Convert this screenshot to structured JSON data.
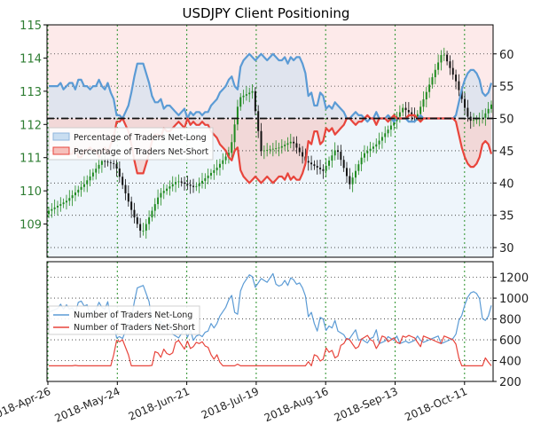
{
  "chart_data": [
    {
      "type": "line",
      "panel": "top",
      "title": "USDJPY Client Positioning",
      "left_axis": {
        "label": "",
        "range": [
          108.0,
          115.0
        ],
        "ticks": [
          109,
          110,
          111,
          112,
          113,
          114,
          115
        ],
        "color": "#2e7d32"
      },
      "right_axis": {
        "label": "",
        "range": [
          28.5,
          64.5
        ],
        "ticks": [
          30,
          35,
          40,
          45,
          50,
          55,
          60
        ]
      },
      "grid": true,
      "reference_line": {
        "axis": "right",
        "value": 50,
        "style": "dash-dot"
      },
      "legend_position": "center-left",
      "series": [
        {
          "name": "Percentage of Traders Net-Long",
          "color": "#5b9bd5",
          "axis": "right",
          "values": [
            55,
            55,
            55,
            55,
            55.5,
            54.5,
            55,
            55.5,
            55.5,
            54.5,
            56,
            56,
            55,
            55,
            54.5,
            55,
            55,
            56,
            55,
            54.5,
            55.5,
            54,
            53,
            50.5,
            50.5,
            50,
            51,
            52,
            54,
            56.5,
            58.5,
            58.5,
            58.5,
            57,
            55.5,
            53.5,
            52.5,
            52.5,
            53,
            51.5,
            52,
            52,
            51.5,
            51,
            50.5,
            51,
            51.5,
            50,
            51,
            50.5,
            51,
            51,
            50.5,
            51,
            51,
            52,
            52.5,
            53,
            54,
            54.5,
            55,
            56,
            56.5,
            55,
            54.5,
            58,
            59,
            59.5,
            60,
            59.5,
            59,
            59.5,
            60,
            59.5,
            59,
            59.5,
            60,
            59.5,
            59,
            59,
            59.5,
            58.5,
            59.5,
            59,
            59.5,
            59.5,
            58.5,
            57,
            53.5,
            54,
            52,
            52,
            54,
            53.5,
            51.5,
            52,
            51.5,
            52.5,
            52,
            51.5,
            51,
            50,
            50,
            50.5,
            51,
            50.5,
            50.5,
            50,
            49.5,
            50,
            50,
            51,
            50,
            50,
            50,
            50.5,
            50,
            49.5,
            50,
            50,
            50,
            50,
            49.5,
            49.5,
            49.5,
            50,
            50.5,
            50,
            50,
            50,
            50,
            50,
            50,
            50,
            50,
            50,
            50,
            50,
            50.5,
            52.5,
            54.5,
            56,
            57,
            57.5,
            57.5,
            57,
            56,
            54,
            53.5,
            54,
            55.5
          ]
        },
        {
          "name": "Percentage of Traders Net-Short",
          "color": "#e8453c",
          "axis": "right",
          "values": [
            45,
            45,
            45,
            45,
            44.5,
            45.5,
            45,
            44.5,
            44.5,
            45.5,
            44,
            44,
            45,
            45,
            45.5,
            45,
            45,
            44,
            45,
            45.5,
            44.5,
            46,
            47,
            49.5,
            49.5,
            50,
            49,
            48,
            46,
            43.5,
            41.5,
            41.5,
            41.5,
            43,
            44.5,
            46.5,
            47.5,
            47.5,
            47,
            48.5,
            48,
            48,
            48.5,
            49,
            49.5,
            49,
            48.5,
            50,
            49,
            49.5,
            49,
            49,
            49.5,
            49,
            49,
            48,
            47.5,
            47,
            46,
            45.5,
            45,
            44,
            43.5,
            45,
            45.5,
            42,
            41,
            40.5,
            40,
            40.5,
            41,
            40.5,
            40,
            40.5,
            41,
            40.5,
            40,
            40.5,
            41,
            41,
            40.5,
            41.5,
            40.5,
            41,
            40.5,
            40.5,
            41.5,
            43,
            46.5,
            46,
            48,
            48,
            46,
            46.5,
            48.5,
            48,
            48.5,
            47.5,
            48,
            48.5,
            49,
            50,
            50,
            49.5,
            49,
            49.5,
            49.5,
            50,
            50.5,
            50,
            50,
            49,
            50,
            50,
            50,
            49.5,
            50,
            50.5,
            50,
            50,
            50,
            50,
            50.5,
            50.5,
            50.5,
            50,
            49.5,
            50,
            50,
            50,
            50,
            50,
            50,
            50,
            50,
            50,
            50,
            50,
            49.5,
            47.5,
            45.5,
            44,
            43,
            42.5,
            42.5,
            43,
            44,
            46,
            46.5,
            46,
            44.5
          ]
        }
      ]
    },
    {
      "type": "line",
      "panel": "bottom",
      "x_tick_labels": [
        "2018-Apr-26",
        "2018-May-24",
        "2018-Jun-21",
        "2018-Jul-19",
        "2018-Aug-16",
        "2018-Sep-13",
        "2018-Oct-11"
      ],
      "y_axis": {
        "label": "",
        "range": [
          200,
          1350
        ],
        "ticks": [
          200,
          400,
          600,
          800,
          1000,
          1200
        ]
      },
      "grid": true,
      "legend_position": "center-left",
      "series": [
        {
          "name": "Number of Traders Net-Long",
          "color": "#5b9bd5"
        },
        {
          "name": "Number of Traders Net-Short",
          "color": "#e8453c"
        }
      ]
    }
  ],
  "layout_hint": "top price candles share x with bottom panel"
}
